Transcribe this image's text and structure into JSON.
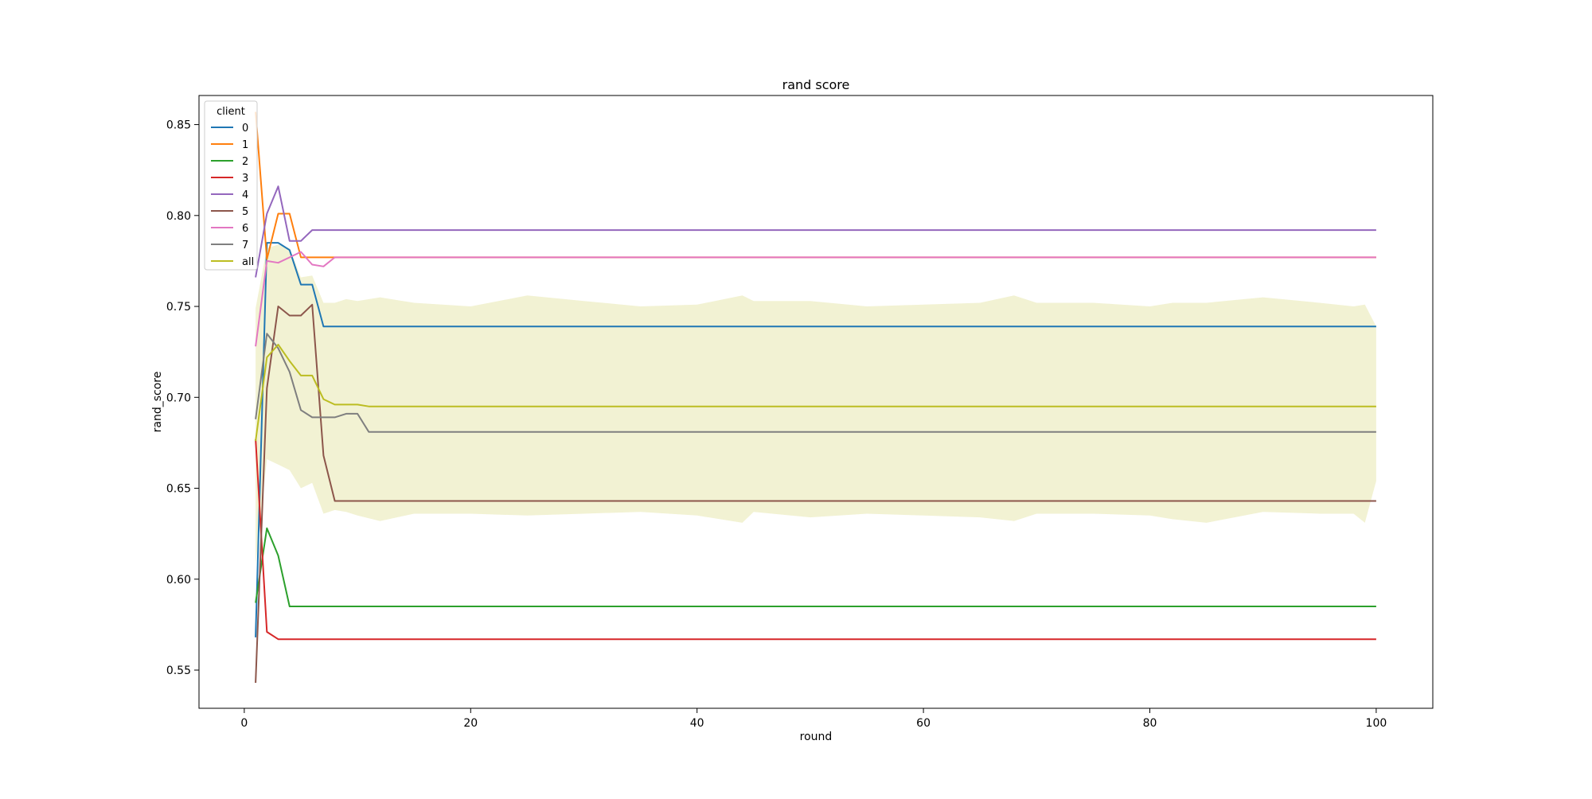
{
  "chart_data": {
    "type": "line",
    "title": "rand score",
    "xlabel": "round",
    "ylabel": "rand_score",
    "xlim": [
      -4,
      105
    ],
    "ylim": [
      0.529,
      0.866
    ],
    "xticks": [
      0,
      20,
      40,
      60,
      80,
      100
    ],
    "yticks": [
      0.55,
      0.6,
      0.65,
      0.7,
      0.75,
      0.8,
      0.85
    ],
    "grid": false,
    "legend": {
      "title": "client",
      "placement": "top-left"
    },
    "series": [
      {
        "name": "0",
        "color": "#1f77b4",
        "x": [
          1,
          2,
          3,
          4,
          5,
          6,
          7,
          100
        ],
        "y": [
          0.568,
          0.785,
          0.785,
          0.781,
          0.762,
          0.762,
          0.739,
          0.739
        ]
      },
      {
        "name": "1",
        "color": "#ff7f0e",
        "x": [
          1,
          2,
          3,
          4,
          5,
          6,
          7,
          100
        ],
        "y": [
          0.857,
          0.776,
          0.801,
          0.801,
          0.777,
          0.777,
          0.777,
          0.777
        ]
      },
      {
        "name": "2",
        "color": "#2ca02c",
        "x": [
          1,
          2,
          3,
          4,
          5,
          100
        ],
        "y": [
          0.587,
          0.628,
          0.613,
          0.585,
          0.585,
          0.585
        ]
      },
      {
        "name": "3",
        "color": "#d62728",
        "x": [
          1,
          2,
          3,
          4,
          100
        ],
        "y": [
          0.677,
          0.571,
          0.567,
          0.567,
          0.567
        ]
      },
      {
        "name": "4",
        "color": "#9467bd",
        "x": [
          1,
          2,
          3,
          4,
          5,
          6,
          7,
          100
        ],
        "y": [
          0.766,
          0.801,
          0.816,
          0.786,
          0.786,
          0.792,
          0.792,
          0.792
        ]
      },
      {
        "name": "5",
        "color": "#8c564b",
        "x": [
          1,
          2,
          3,
          4,
          5,
          6,
          7,
          8,
          9,
          100
        ],
        "y": [
          0.543,
          0.705,
          0.75,
          0.745,
          0.745,
          0.751,
          0.668,
          0.643,
          0.643,
          0.643
        ]
      },
      {
        "name": "6",
        "color": "#e377c2",
        "x": [
          1,
          2,
          3,
          4,
          5,
          6,
          7,
          8,
          9,
          100
        ],
        "y": [
          0.728,
          0.775,
          0.774,
          0.777,
          0.78,
          0.773,
          0.772,
          0.777,
          0.777,
          0.777
        ]
      },
      {
        "name": "7",
        "color": "#7f7f7f",
        "x": [
          1,
          2,
          3,
          4,
          5,
          6,
          7,
          8,
          9,
          10,
          11,
          100
        ],
        "y": [
          0.688,
          0.735,
          0.727,
          0.714,
          0.693,
          0.689,
          0.689,
          0.689,
          0.691,
          0.691,
          0.681,
          0.681
        ]
      },
      {
        "name": "all",
        "color": "#bcbd22",
        "x": [
          1,
          2,
          3,
          4,
          5,
          6,
          7,
          8,
          9,
          10,
          11,
          100
        ],
        "y": [
          0.676,
          0.722,
          0.729,
          0.72,
          0.712,
          0.712,
          0.699,
          0.696,
          0.696,
          0.696,
          0.695,
          0.695
        ]
      }
    ],
    "band": {
      "series": "all",
      "color": "#bcbd22",
      "x": [
        1,
        2,
        3,
        4,
        5,
        6,
        7,
        8,
        9,
        10,
        12,
        15,
        20,
        25,
        30,
        35,
        40,
        44,
        45,
        50,
        55,
        60,
        65,
        68,
        70,
        75,
        80,
        82,
        85,
        90,
        95,
        98,
        99,
        100
      ],
      "upper": [
        0.749,
        0.782,
        0.784,
        0.782,
        0.766,
        0.767,
        0.752,
        0.752,
        0.754,
        0.753,
        0.755,
        0.752,
        0.75,
        0.756,
        0.753,
        0.75,
        0.751,
        0.756,
        0.753,
        0.753,
        0.75,
        0.751,
        0.752,
        0.756,
        0.752,
        0.752,
        0.75,
        0.752,
        0.752,
        0.755,
        0.752,
        0.75,
        0.751,
        0.739
      ],
      "lower": [
        0.608,
        0.666,
        0.663,
        0.66,
        0.65,
        0.653,
        0.636,
        0.638,
        0.637,
        0.635,
        0.632,
        0.636,
        0.636,
        0.635,
        0.636,
        0.637,
        0.635,
        0.631,
        0.637,
        0.634,
        0.636,
        0.635,
        0.634,
        0.632,
        0.636,
        0.636,
        0.635,
        0.633,
        0.631,
        0.637,
        0.636,
        0.636,
        0.631,
        0.654
      ]
    }
  }
}
